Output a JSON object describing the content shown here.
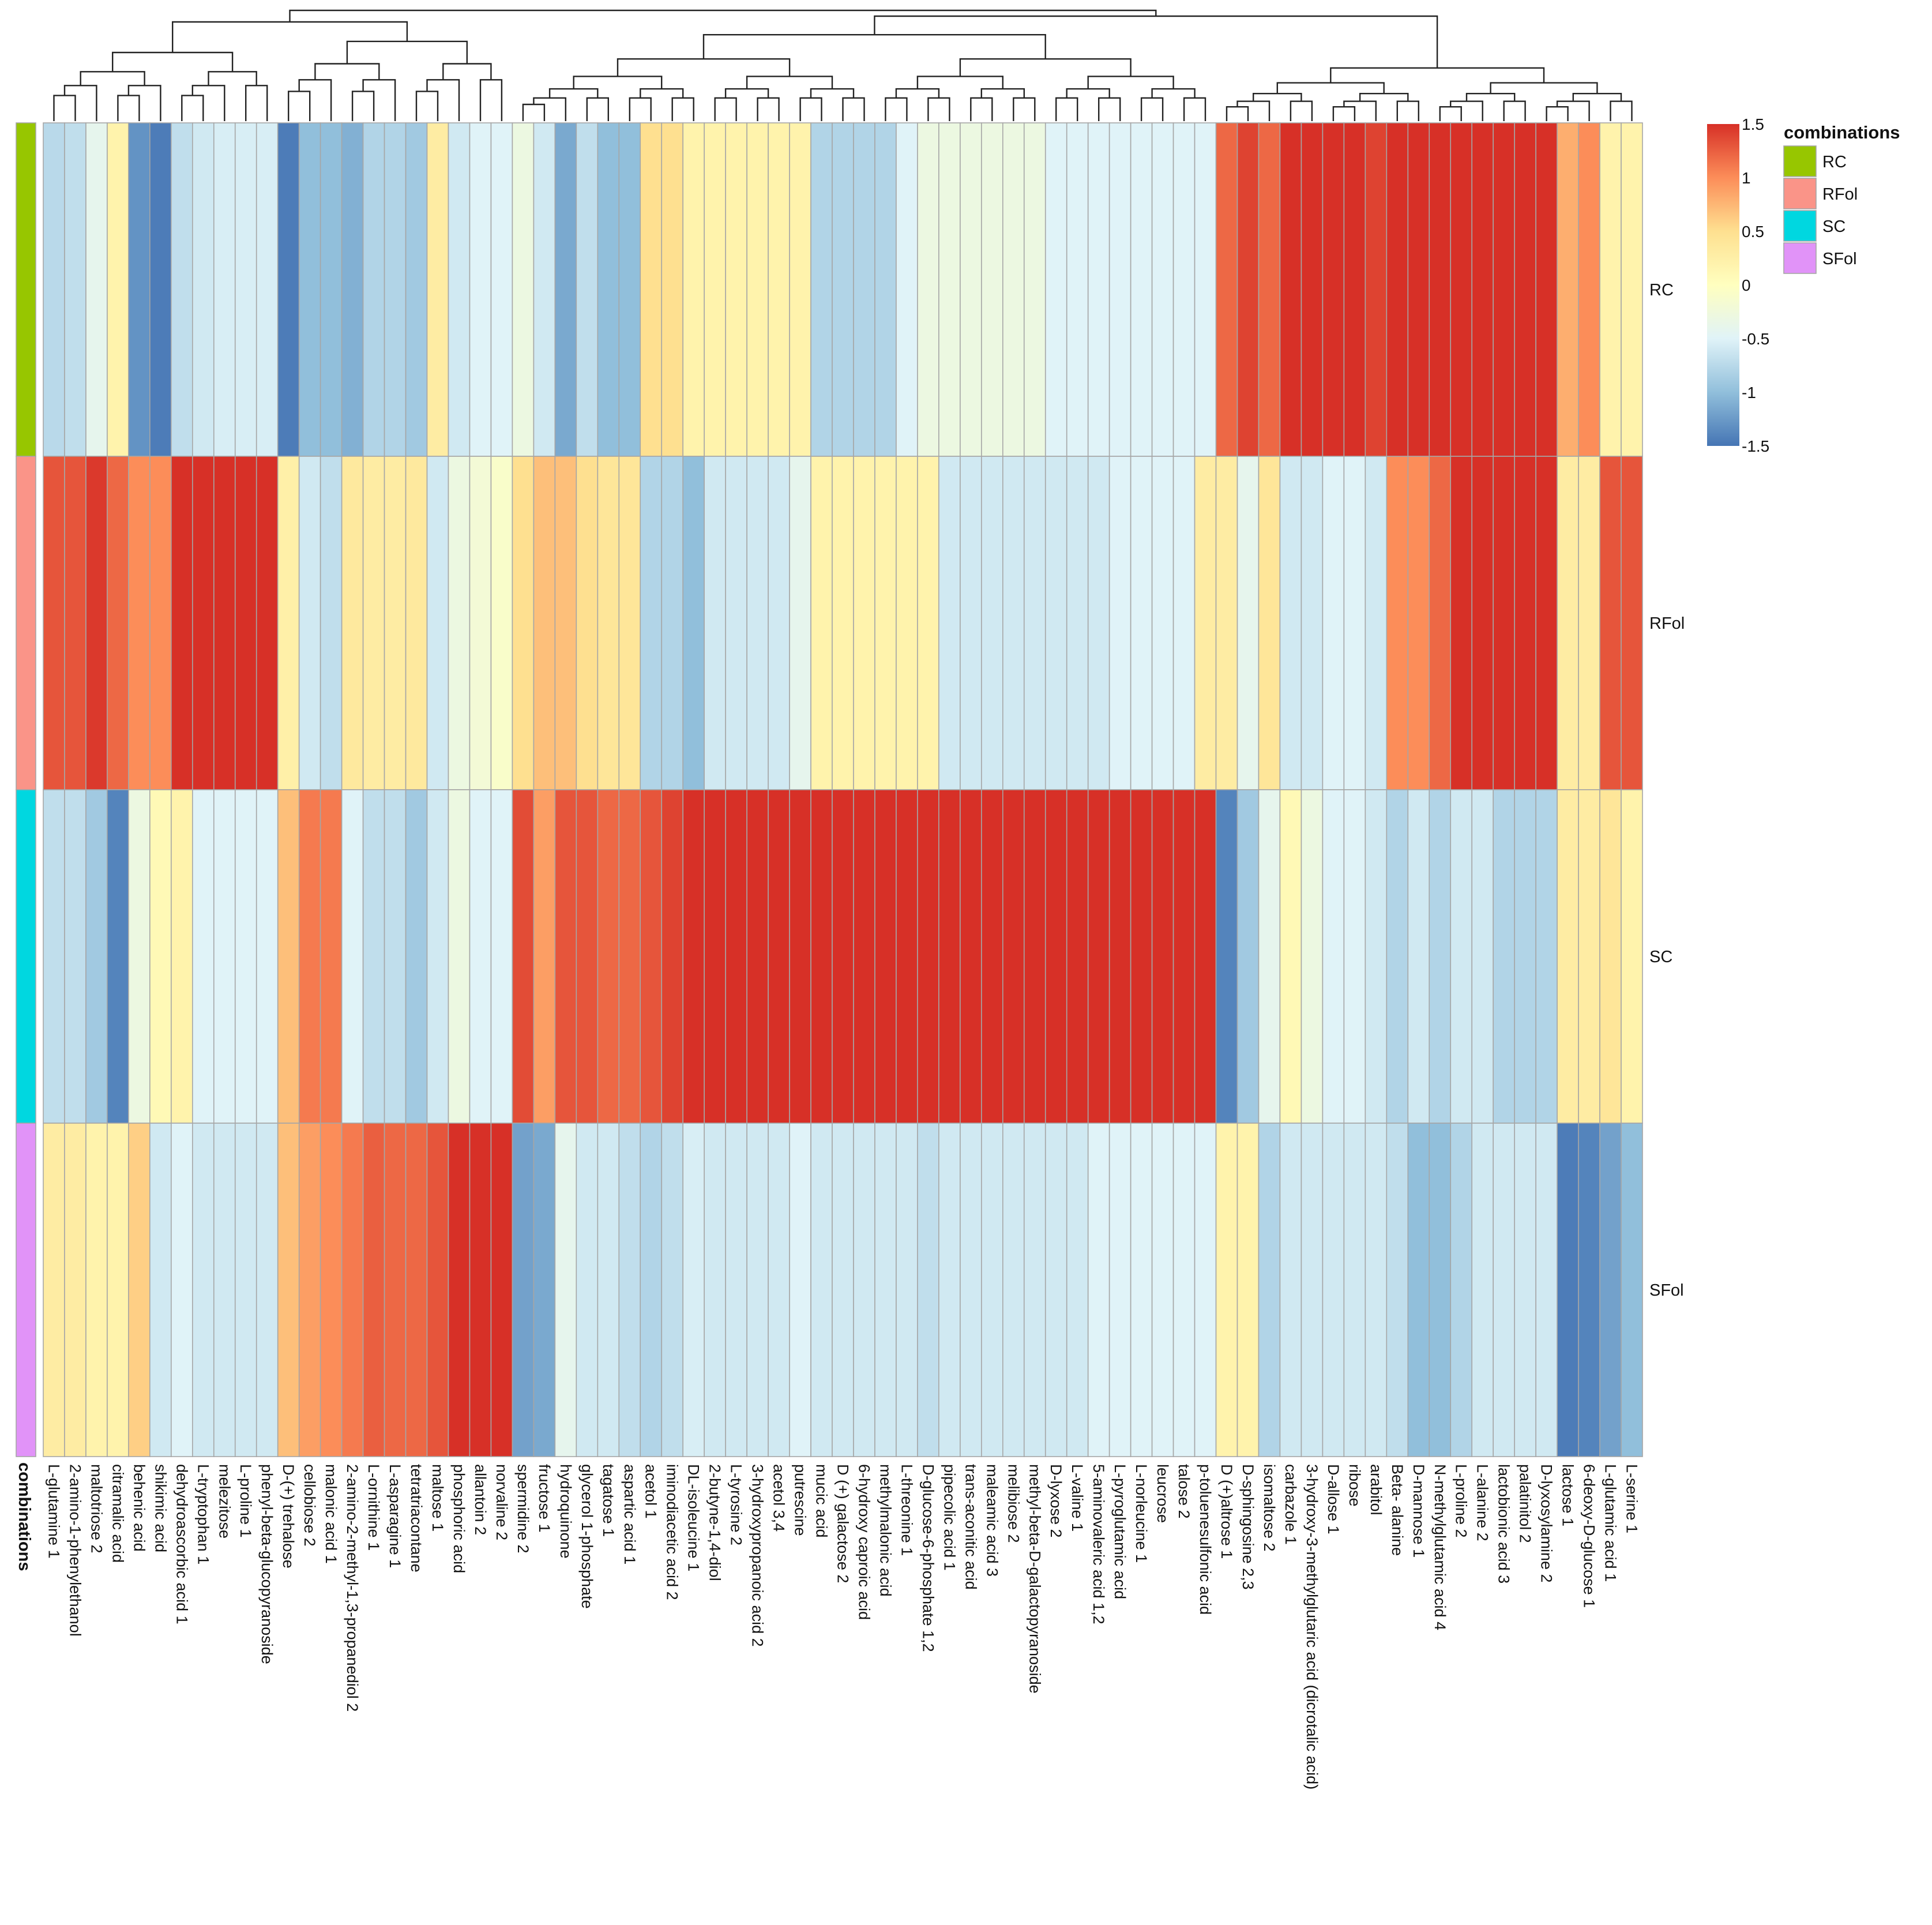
{
  "chart_data": {
    "type": "heatmap",
    "title": "",
    "annotation": {
      "name": "combinations",
      "legend_title": "combinations",
      "entries": [
        {
          "label": "RC",
          "color": "#97c600"
        },
        {
          "label": "RFol",
          "color": "#fa9488"
        },
        {
          "label": "SC",
          "color": "#00d7e0"
        },
        {
          "label": "SFol",
          "color": "#e193f8"
        }
      ]
    },
    "rows": [
      "RC",
      "RFol",
      "SC",
      "SFol"
    ],
    "columns": [
      "L-glutamine 1",
      "2-amino-1-phenylethanol",
      "maltotriose 2",
      "citramalic acid",
      "behenic acid",
      "shikimic acid",
      "dehydroascorbic acid  1",
      "L-tryptophan 1",
      "melezitose",
      "L-proline 1",
      "phenyl-beta-glucopyranoside",
      "D-(+) trehalose",
      "cellobiose 2",
      "malonic acid 1",
      "2-amino-2-methyl-1,3-propanediol 2",
      "L-ornithine 1",
      "L-asparagine 1",
      "tetratriacontane",
      "maltose 1",
      "phosphoric acid",
      "allantoin 2",
      "norvaline 2",
      "spermidine 2",
      "fructose 1",
      "hydroquinone",
      "glycerol 1-phosphate",
      "tagatose 1",
      "aspartic acid 1",
      "acetol 1",
      "iminodiacetic acid 2",
      "DL-isoleucine 1",
      "2-butyne-1,4-diol",
      "L-tyrosine 2",
      "3-hydroxypropanoic acid 2",
      "acetol 3,4",
      "putrescine",
      "mucic acid",
      "D (+) galactose 2",
      "6-hydroxy caproic acid",
      "methylmalonic acid",
      "L-threonine 1",
      "D-glucose-6-phosphate 1,2",
      "pipecolic acid 1",
      "trans-aconitic acid",
      "maleamic acid 3",
      "melibiose 2",
      "methyl-beta-D-galactopyranoside",
      "D-lyxose 2",
      "L-valine 1",
      "5-aminovaleric acid 1,2",
      "L-pyroglutamic acid",
      "L-norleucine 1",
      "leucrose",
      "talose 2",
      "p-toluenesulfonic acid",
      "D (+)altrose 1",
      "D-sphingosine  2,3",
      "isomaltose 2",
      "carbazole 1",
      "3-hydroxy-3-methylglutaric acid (dicrotalic acid)",
      "D-allose 1",
      "ribose",
      "arabitol",
      "Beta- alanine",
      "D-mannose 1",
      "N-methylglutamic acid 4",
      "L-proline 2",
      "L-alanine 2",
      "lactobionic acid 3",
      "palatinitol 2",
      "D-lyxosylamine 2",
      "lactose 1",
      "6-deoxy-D-glucose 1",
      "L-glutamic acid 1",
      "L-serine 1"
    ],
    "values": [
      [
        -0.75,
        -0.7,
        -0.4,
        0.2,
        -1.3,
        -1.45,
        -0.7,
        -0.6,
        -0.55,
        -0.55,
        -0.55,
        -1.45,
        -1.0,
        -1.0,
        -1.1,
        -0.8,
        -0.8,
        -0.9,
        0.3,
        -0.6,
        -0.5,
        -0.5,
        -0.3,
        -0.6,
        -1.15,
        -0.7,
        -1.0,
        -1.0,
        0.5,
        0.5,
        0.2,
        0.2,
        0.2,
        0.2,
        0.2,
        0.2,
        -0.8,
        -0.8,
        -0.8,
        -0.8,
        -0.5,
        -0.3,
        -0.3,
        -0.3,
        -0.3,
        -0.3,
        -0.3,
        -0.5,
        -0.5,
        -0.5,
        -0.5,
        -0.5,
        -0.5,
        -0.5,
        -0.5,
        1.2,
        1.4,
        1.2,
        1.5,
        1.5,
        1.5,
        1.5,
        1.4,
        1.5,
        1.5,
        1.5,
        1.5,
        1.5,
        1.5,
        1.5,
        1.5,
        0.8,
        1.0,
        0.2,
        0.2
      ],
      [
        1.3,
        1.3,
        1.45,
        1.2,
        1.0,
        1.0,
        1.5,
        1.5,
        1.5,
        1.5,
        1.5,
        0.25,
        -0.6,
        -0.7,
        0.35,
        0.3,
        0.3,
        0.35,
        -0.6,
        -0.3,
        -0.2,
        -0.1,
        0.5,
        0.7,
        0.7,
        0.5,
        0.4,
        0.4,
        -0.8,
        -0.8,
        -1.0,
        -0.6,
        -0.6,
        -0.6,
        -0.6,
        -0.4,
        0.2,
        0.2,
        0.2,
        0.2,
        0.2,
        0.2,
        -0.6,
        -0.6,
        -0.6,
        -0.6,
        -0.6,
        -0.6,
        -0.6,
        -0.6,
        -0.5,
        -0.5,
        -0.5,
        -0.5,
        0.3,
        0.3,
        -0.4,
        0.4,
        -0.6,
        -0.6,
        -0.5,
        -0.5,
        -0.6,
        1.0,
        1.0,
        1.2,
        1.5,
        1.5,
        1.5,
        1.5,
        1.5,
        0.3,
        0.3,
        1.3,
        1.3
      ],
      [
        -0.7,
        -0.7,
        -0.9,
        -1.4,
        -0.3,
        0.1,
        0.2,
        -0.5,
        -0.5,
        -0.5,
        -0.5,
        0.7,
        1.1,
        1.1,
        -0.5,
        -0.7,
        -0.7,
        -0.9,
        -0.6,
        -0.3,
        -0.5,
        -0.5,
        1.35,
        0.9,
        1.3,
        1.3,
        1.2,
        1.2,
        1.3,
        1.4,
        1.5,
        1.5,
        1.5,
        1.5,
        1.5,
        1.5,
        1.5,
        1.5,
        1.5,
        1.5,
        1.5,
        1.5,
        1.5,
        1.5,
        1.5,
        1.5,
        1.5,
        1.5,
        1.5,
        1.5,
        1.5,
        1.5,
        1.5,
        1.5,
        1.5,
        -1.4,
        -0.9,
        -0.4,
        0.1,
        -0.3,
        -0.5,
        -0.5,
        -0.6,
        -0.8,
        -0.6,
        -0.8,
        -0.6,
        -0.6,
        -0.8,
        -0.8,
        -0.8,
        0.3,
        0.3,
        0.4,
        0.2
      ],
      [
        0.3,
        0.3,
        0.2,
        0.2,
        0.6,
        -0.6,
        -0.5,
        -0.6,
        -0.6,
        -0.6,
        -0.6,
        0.7,
        0.9,
        1.0,
        1.1,
        1.25,
        1.2,
        1.2,
        1.3,
        1.5,
        1.5,
        1.5,
        -1.2,
        -1.15,
        -0.4,
        -0.6,
        -0.6,
        -0.7,
        -0.8,
        -0.7,
        -0.55,
        -0.6,
        -0.6,
        -0.6,
        -0.6,
        -0.5,
        -0.6,
        -0.6,
        -0.6,
        -0.6,
        -0.6,
        -0.7,
        -0.6,
        -0.6,
        -0.6,
        -0.6,
        -0.6,
        -0.6,
        -0.6,
        -0.5,
        -0.5,
        -0.5,
        -0.5,
        -0.5,
        -0.5,
        0.2,
        0.2,
        -0.8,
        -0.6,
        -0.6,
        -0.6,
        -0.6,
        -0.6,
        -0.7,
        -1.0,
        -1.0,
        -0.8,
        -0.6,
        -0.6,
        -0.6,
        -0.6,
        -1.45,
        -1.4,
        -1.2,
        -1.0
      ]
    ],
    "color_scale": {
      "min": -1.5,
      "max": 1.5,
      "ticks": [
        "1.5",
        "1",
        "0.5",
        "0",
        "-0.5",
        "-1",
        "-1.5"
      ],
      "colors": [
        "#4575b4",
        "#91bfdb",
        "#e0f3f8",
        "#ffffbf",
        "#fee090",
        "#fc8d59",
        "#d73027"
      ]
    },
    "column_dendrogram": true,
    "row_cluster": false
  }
}
